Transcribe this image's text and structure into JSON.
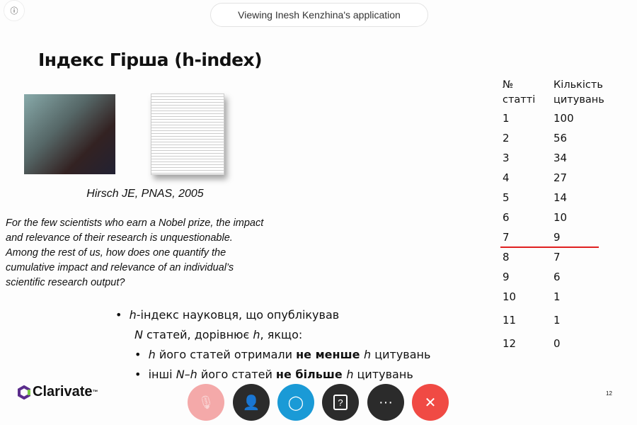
{
  "header": {
    "info_icon": "info-icon",
    "viewing_label": "Viewing Inesh Kenzhina's application"
  },
  "slide": {
    "title": "Індекс Гірша (h-index)",
    "citation": "Hirsch JE, PNAS, 2005",
    "quote": "For the few scientists who earn a Nobel prize, the impact\nand relevance of their research is unquestionable.\nAmong the rest of us, how does one quantify the\ncumulative impact and relevance of an individual’s\nscientific research output?",
    "bullet1_a": "h",
    "bullet1_b": "-індекс науковця, що опублікував",
    "bullet1_line2_a": "N",
    "bullet1_line2_b": " статей, дорівнює ",
    "bullet1_line2_c": "h",
    "bullet1_line2_d": ", якщо:",
    "sub1": [
      "h",
      " його статей отримали ",
      "не менше ",
      "h",
      " цитувань"
    ],
    "sub2": [
      "інші ",
      "N–h",
      " його статей ",
      "не більше ",
      "h",
      " цитувань"
    ],
    "table": {
      "col1_header": [
        "№",
        "статті"
      ],
      "col2_header": [
        "Кількість",
        "цитувань"
      ],
      "rows": [
        [
          "1",
          "100"
        ],
        [
          "2",
          "56"
        ],
        [
          "3",
          "34"
        ],
        [
          "4",
          "27"
        ],
        [
          "5",
          "14"
        ],
        [
          "6",
          "10"
        ],
        [
          "7",
          "9"
        ],
        [
          "8",
          "7"
        ],
        [
          "9",
          "6"
        ],
        [
          "10",
          "1"
        ],
        [
          "11",
          "1"
        ],
        [
          "12",
          "0"
        ]
      ],
      "h_line_color": "#e02020"
    },
    "logo": "Clarivate",
    "logo_tm": "™",
    "page_number": "12"
  },
  "controls": [
    {
      "name": "mute-locked-button",
      "icon": "microphone-off-lock-icon",
      "color": "#f4a9a9"
    },
    {
      "name": "participants-button",
      "icon": "participants-icon",
      "color": "#2b2b2b"
    },
    {
      "name": "chat-button",
      "icon": "chat-icon",
      "color": "#1a9ad6"
    },
    {
      "name": "qa-button",
      "icon": "question-icon",
      "color": "#2b2b2b"
    },
    {
      "name": "more-button",
      "icon": "more-icon",
      "color": "#2b2b2b"
    },
    {
      "name": "leave-button",
      "icon": "close-icon",
      "color": "#f04a44"
    }
  ]
}
